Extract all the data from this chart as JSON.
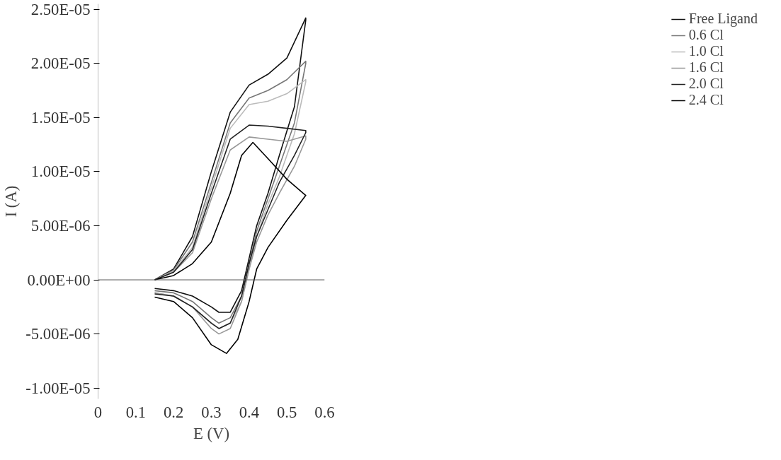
{
  "chart_data": {
    "type": "line",
    "xlabel": "E (V)",
    "ylabel": "I (A)",
    "xlim": [
      0,
      0.6
    ],
    "xticks": [
      0,
      0.1,
      0.2,
      0.3,
      0.4,
      0.5,
      0.6
    ],
    "ylim": [
      -1.1e-05,
      2.55e-05
    ],
    "yticks": [
      {
        "value": -1e-05,
        "label": "-1.00E-05"
      },
      {
        "value": -5e-06,
        "label": "-5.00E-06"
      },
      {
        "value": 0,
        "label": "0.00E+00"
      },
      {
        "value": 5e-06,
        "label": "5.00E-06"
      },
      {
        "value": 1e-05,
        "label": "1.00E-05"
      },
      {
        "value": 1.5e-05,
        "label": "1.50E-05"
      },
      {
        "value": 2e-05,
        "label": "2.00E-05"
      },
      {
        "value": 2.5e-05,
        "label": "2.50E-05"
      }
    ],
    "grid": false,
    "ref_lines": [
      {
        "axis": "y",
        "value": 0
      }
    ],
    "legend": "top right",
    "marker": "none",
    "line_style": "solid",
    "series": [
      {
        "name": "Free Ligand",
        "color": "#111111",
        "x": [
          0.15,
          0.2,
          0.25,
          0.3,
          0.35,
          0.4,
          0.45,
          0.5,
          0.55,
          0.55,
          0.52,
          0.48,
          0.45,
          0.42,
          0.4,
          0.38,
          0.35,
          0.32,
          0.3,
          0.25,
          0.2,
          0.15
        ],
        "values": [
          0,
          1e-06,
          4e-06,
          1e-05,
          1.55e-05,
          1.8e-05,
          1.9e-05,
          2.05e-05,
          2.42e-05,
          2.4e-05,
          1.6e-05,
          1.15e-05,
          8e-06,
          5e-06,
          2e-06,
          -1e-06,
          -3e-06,
          -3e-06,
          -2.5e-06,
          -1.5e-06,
          -1e-06,
          -8e-07
        ]
      },
      {
        "name": "0.6 Cl",
        "color": "#777777",
        "x": [
          0.15,
          0.2,
          0.25,
          0.3,
          0.35,
          0.4,
          0.45,
          0.5,
          0.55,
          0.55,
          0.52,
          0.48,
          0.45,
          0.42,
          0.4,
          0.38,
          0.35,
          0.32,
          0.3,
          0.25,
          0.2,
          0.15
        ],
        "values": [
          0,
          9e-07,
          3.5e-06,
          9e-06,
          1.45e-05,
          1.68e-05,
          1.75e-05,
          1.85e-05,
          2.02e-05,
          2e-05,
          1.45e-05,
          1.05e-05,
          7.5e-06,
          4.5e-06,
          1.5e-06,
          -1.5e-06,
          -3.5e-06,
          -4e-06,
          -3.5e-06,
          -2e-06,
          -1.2e-06,
          -1e-06
        ]
      },
      {
        "name": "1.0 Cl",
        "color": "#bbbbbb",
        "x": [
          0.15,
          0.2,
          0.25,
          0.3,
          0.35,
          0.4,
          0.45,
          0.5,
          0.55,
          0.55,
          0.52,
          0.48,
          0.45,
          0.42,
          0.4,
          0.38,
          0.35,
          0.32,
          0.3,
          0.25,
          0.2,
          0.15
        ],
        "values": [
          0,
          8e-07,
          3e-06,
          8.5e-06,
          1.4e-05,
          1.62e-05,
          1.65e-05,
          1.72e-05,
          1.85e-05,
          1.83e-05,
          1.35e-05,
          9.5e-06,
          7e-06,
          4e-06,
          1e-06,
          -2e-06,
          -4e-06,
          -4.5e-06,
          -4e-06,
          -2.5e-06,
          -1.5e-06,
          -1.2e-06
        ]
      },
      {
        "name": "1.6 Cl",
        "color": "#999999",
        "x": [
          0.15,
          0.2,
          0.25,
          0.3,
          0.35,
          0.4,
          0.45,
          0.5,
          0.55,
          0.55,
          0.52,
          0.48,
          0.45,
          0.42,
          0.4,
          0.38,
          0.35,
          0.32,
          0.3,
          0.25,
          0.2,
          0.15
        ],
        "values": [
          0,
          7e-07,
          2.5e-06,
          7.5e-06,
          1.2e-05,
          1.32e-05,
          1.3e-05,
          1.28e-05,
          1.33e-05,
          1.3e-05,
          1.05e-05,
          8e-06,
          6e-06,
          3.5e-06,
          1e-06,
          -2e-06,
          -4.5e-06,
          -5e-06,
          -4.5e-06,
          -2.5e-06,
          -1.5e-06,
          -1.2e-06
        ]
      },
      {
        "name": "2.0 Cl",
        "color": "#222222",
        "x": [
          0.15,
          0.2,
          0.25,
          0.3,
          0.35,
          0.4,
          0.45,
          0.5,
          0.55,
          0.55,
          0.52,
          0.48,
          0.45,
          0.42,
          0.4,
          0.38,
          0.35,
          0.32,
          0.3,
          0.25,
          0.2,
          0.15
        ],
        "values": [
          0,
          7e-07,
          2.8e-06,
          8e-06,
          1.3e-05,
          1.43e-05,
          1.42e-05,
          1.4e-05,
          1.38e-05,
          1.36e-05,
          1.15e-05,
          9e-06,
          6.5e-06,
          4e-06,
          1.5e-06,
          -1.5e-06,
          -4e-06,
          -4.5e-06,
          -4e-06,
          -2.5e-06,
          -1.5e-06,
          -1.3e-06
        ]
      },
      {
        "name": "2.4 Cl",
        "color": "#000000",
        "x": [
          0.15,
          0.2,
          0.25,
          0.3,
          0.35,
          0.38,
          0.41,
          0.45,
          0.5,
          0.55,
          0.55,
          0.5,
          0.45,
          0.42,
          0.4,
          0.37,
          0.34,
          0.3,
          0.25,
          0.2,
          0.15
        ],
        "values": [
          0,
          4e-07,
          1.5e-06,
          3.5e-06,
          8e-06,
          1.15e-05,
          1.27e-05,
          1.12e-05,
          9.3e-06,
          7.8e-06,
          7.8e-06,
          5.5e-06,
          3e-06,
          1e-06,
          -2e-06,
          -5.5e-06,
          -6.8e-06,
          -6e-06,
          -3.5e-06,
          -2e-06,
          -1.6e-06
        ]
      }
    ]
  }
}
